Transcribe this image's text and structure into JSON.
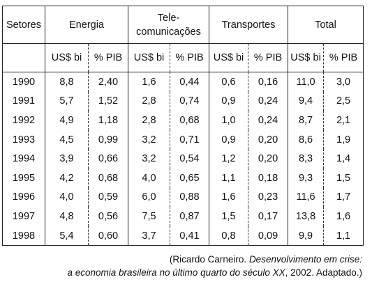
{
  "table": {
    "headers": {
      "sectors": "Setores",
      "groups": [
        "Energia",
        "Tele-",
        "comunicações",
        "Transportes",
        "Total"
      ],
      "sub": {
        "usd": "US$ bi",
        "pib": "% PIB"
      }
    },
    "rows": [
      {
        "year": "1990",
        "energia_usd": "8,8",
        "energia_pib": "2,40",
        "tele_usd": "1,6",
        "tele_pib": "0,44",
        "transp_usd": "0,6",
        "transp_pib": "0,16",
        "total_usd": "11,0",
        "total_pib": "3,0"
      },
      {
        "year": "1991",
        "energia_usd": "5,7",
        "energia_pib": "1,52",
        "tele_usd": "2,8",
        "tele_pib": "0,74",
        "transp_usd": "0,9",
        "transp_pib": "0,24",
        "total_usd": "9,4",
        "total_pib": "2,5"
      },
      {
        "year": "1992",
        "energia_usd": "4,9",
        "energia_pib": "1,18",
        "tele_usd": "2,8",
        "tele_pib": "0,68",
        "transp_usd": "1,0",
        "transp_pib": "0,24",
        "total_usd": "8,7",
        "total_pib": "2,1"
      },
      {
        "year": "1993",
        "energia_usd": "4,5",
        "energia_pib": "0,99",
        "tele_usd": "3,2",
        "tele_pib": "0,71",
        "transp_usd": "0,9",
        "transp_pib": "0,20",
        "total_usd": "8,6",
        "total_pib": "1,9"
      },
      {
        "year": "1994",
        "energia_usd": "3,9",
        "energia_pib": "0,66",
        "tele_usd": "3,2",
        "tele_pib": "0,54",
        "transp_usd": "1,2",
        "transp_pib": "0,20",
        "total_usd": "8,3",
        "total_pib": "1,4"
      },
      {
        "year": "1995",
        "energia_usd": "4,2",
        "energia_pib": "0,68",
        "tele_usd": "4,0",
        "tele_pib": "0,65",
        "transp_usd": "1,1",
        "transp_pib": "0,18",
        "total_usd": "9,3",
        "total_pib": "1,5"
      },
      {
        "year": "1996",
        "energia_usd": "4,0",
        "energia_pib": "0,59",
        "tele_usd": "6,0",
        "tele_pib": "0,88",
        "transp_usd": "1,6",
        "transp_pib": "0,23",
        "total_usd": "11,6",
        "total_pib": "1,7"
      },
      {
        "year": "1997",
        "energia_usd": "4,8",
        "energia_pib": "0,56",
        "tele_usd": "7,5",
        "tele_pib": "0,87",
        "transp_usd": "1,5",
        "transp_pib": "0,17",
        "total_usd": "13,8",
        "total_pib": "1,6"
      },
      {
        "year": "1998",
        "energia_usd": "5,4",
        "energia_pib": "0,60",
        "tele_usd": "3,7",
        "tele_pib": "0,41",
        "transp_usd": "0,8",
        "transp_pib": "0,09",
        "total_usd": "9,9",
        "total_pib": "1,1"
      }
    ]
  },
  "source": {
    "prefix": "(Ricardo Carneiro. ",
    "title_line1": "Desenvolvimento em crise:",
    "title_line2": "a economia brasileira no último quarto do século XX",
    "suffix": ", 2002. Adaptado.)"
  }
}
